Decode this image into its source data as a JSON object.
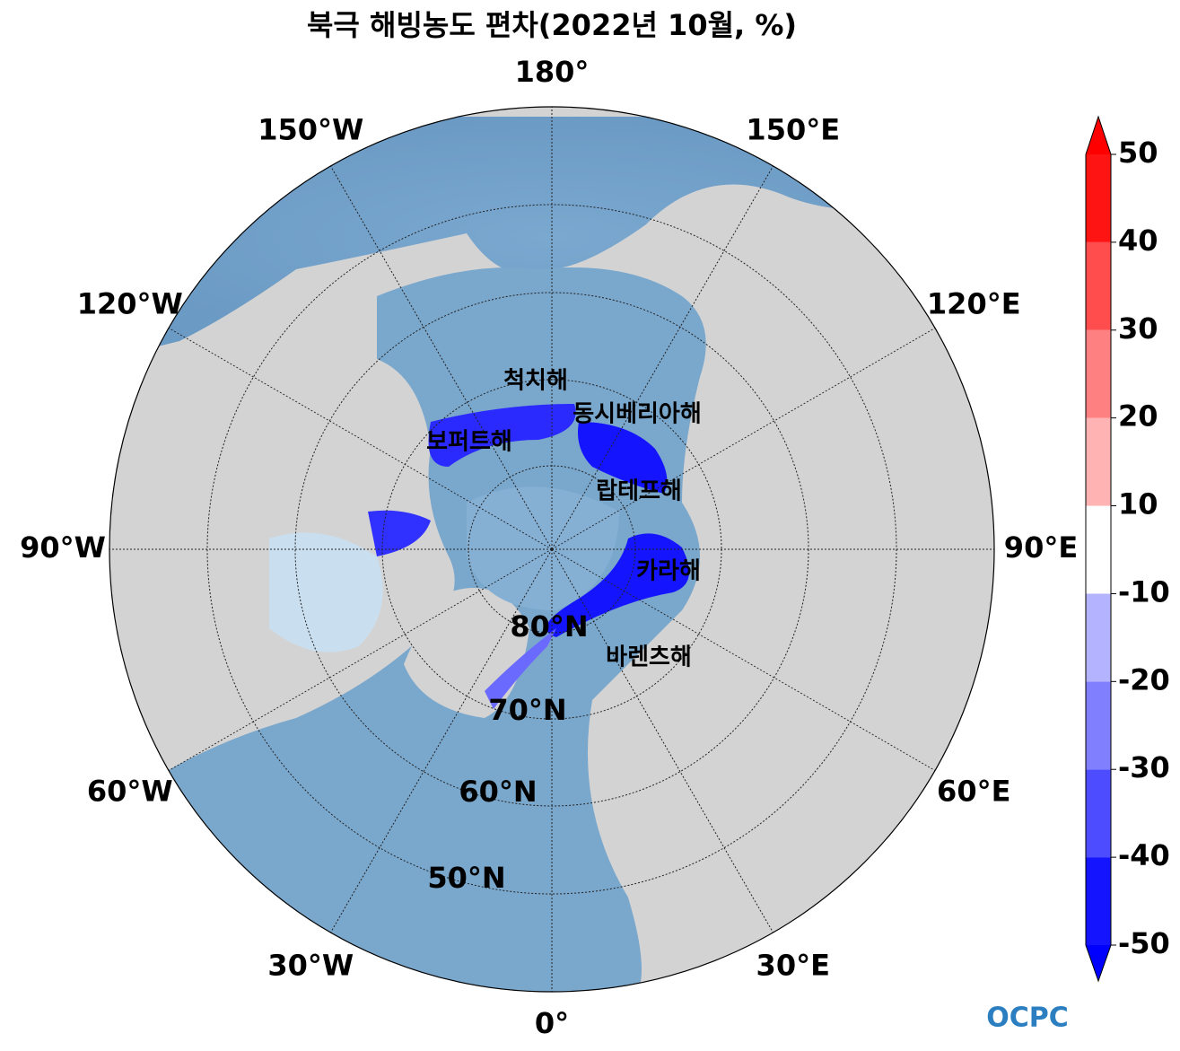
{
  "title": "북극 해빙농도 편차(2022년 10월, %)",
  "longitude_labels": [
    "180°",
    "150°E",
    "120°E",
    "90°E",
    "60°E",
    "30°E",
    "0°",
    "30°W",
    "60°W",
    "90°W",
    "120°W",
    "150°W"
  ],
  "latitude_labels": [
    "80°N",
    "70°N",
    "60°N",
    "50°N"
  ],
  "sea_labels": [
    "척치해",
    "동시베리아해",
    "보퍼트해",
    "랍테프해",
    "카라해",
    "바렌츠해"
  ],
  "colorbar": {
    "ticks": [
      -50,
      -40,
      -30,
      -20,
      -10,
      10,
      20,
      30,
      40,
      50
    ],
    "colors": [
      "#1414ff",
      "#4d4dff",
      "#8080ff",
      "#b3b3ff",
      "#ffffff",
      "#ffb3b3",
      "#ff8080",
      "#ff4d4d",
      "#ff1414"
    ],
    "extend_colors": [
      "#0000ff",
      "#ff0000"
    ]
  },
  "logo": "OCPC"
}
